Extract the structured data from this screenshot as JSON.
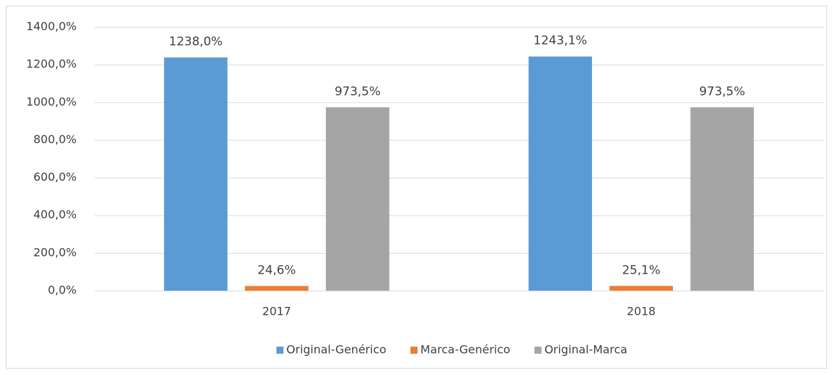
{
  "chart_data": {
    "type": "bar",
    "categories": [
      "2017",
      "2018"
    ],
    "series": [
      {
        "name": "Original-Genérico",
        "color": "#5b9bd5",
        "values": [
          1238.0,
          1243.1
        ],
        "value_labels": [
          "1238,0%",
          "1243,1%"
        ]
      },
      {
        "name": "Marca-Genérico",
        "color": "#ed7d31",
        "values": [
          24.6,
          25.1
        ],
        "value_labels": [
          "24,6%",
          "25,1%"
        ]
      },
      {
        "name": "Original-Marca",
        "color": "#a5a5a5",
        "values": [
          973.5,
          973.5
        ],
        "value_labels": [
          "973,5%",
          "973,5%"
        ]
      }
    ],
    "ylim": [
      0,
      1400
    ],
    "yticks": [
      {
        "value": 0,
        "label": "0,0%"
      },
      {
        "value": 200,
        "label": "200,0%"
      },
      {
        "value": 400,
        "label": "400,0%"
      },
      {
        "value": 600,
        "label": "600,0%"
      },
      {
        "value": 800,
        "label": "800,0%"
      },
      {
        "value": 1000,
        "label": "1000,0%"
      },
      {
        "value": 1200,
        "label": "1200,0%"
      },
      {
        "value": 1400,
        "label": "1400,0%"
      }
    ],
    "grid": true,
    "legend": "bottom"
  }
}
